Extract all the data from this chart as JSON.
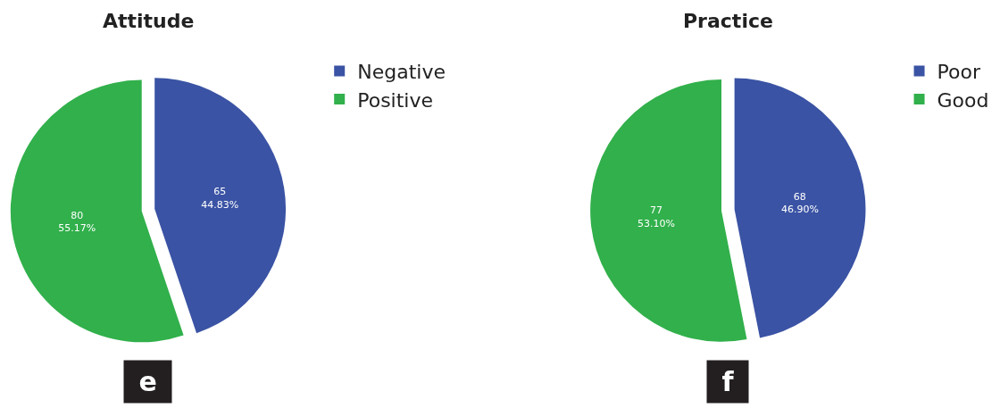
{
  "chart_data": [
    {
      "type": "pie",
      "title": "Attitude",
      "categories": [
        "Negative",
        "Positive"
      ],
      "values": [
        65,
        80
      ],
      "colors": [
        "#3a53a4",
        "#31b04b"
      ],
      "value_labels": [
        "65\n44.83%",
        "80\n55.17%"
      ],
      "legend": "top right",
      "annotations": [
        "e"
      ]
    },
    {
      "type": "pie",
      "title": "Practice",
      "categories": [
        "Poor",
        "Good"
      ],
      "values": [
        68,
        77
      ],
      "colors": [
        "#3a53a4",
        "#31b04b"
      ],
      "value_labels": [
        "68\n46.90%",
        "77\n53.10%"
      ],
      "legend": "top right",
      "annotations": [
        "f"
      ]
    }
  ]
}
